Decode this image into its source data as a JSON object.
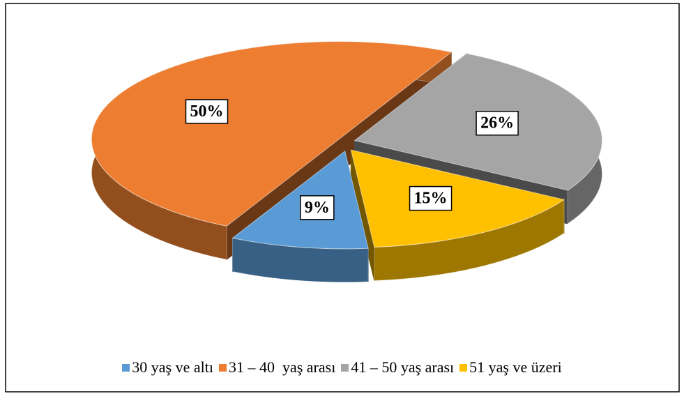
{
  "chart_data": {
    "type": "pie",
    "categories": [
      "30 yaş ve altı",
      "31 – 40  yaş arası",
      "41 – 50 yaş arası",
      "51 yaş ve üzeri"
    ],
    "values": [
      9,
      50,
      26,
      15
    ],
    "value_labels": [
      "9%",
      "50%",
      "26%",
      "15%"
    ],
    "colors": [
      "#5b9bd5",
      "#ed7d31",
      "#a5a5a5",
      "#ffc000"
    ],
    "legend": "bottom"
  }
}
